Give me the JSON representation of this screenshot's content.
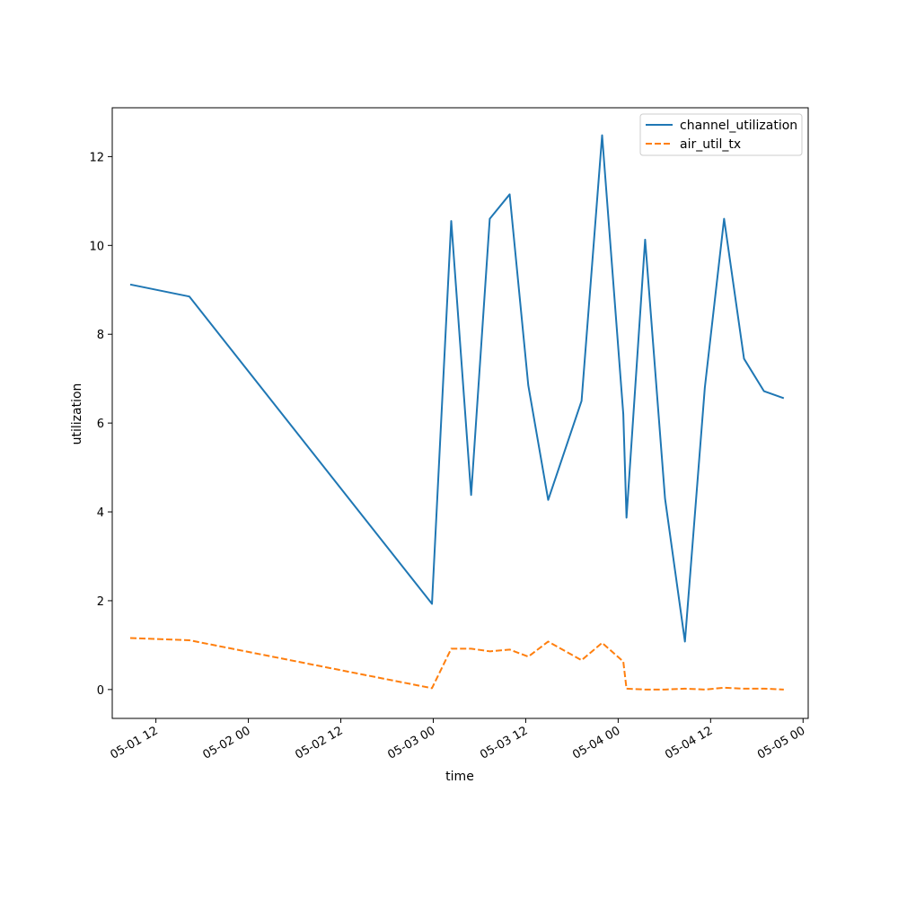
{
  "chart_data": {
    "type": "line",
    "title": "",
    "xlabel": "time",
    "ylabel": "utilization",
    "x_ticks": [
      "05-01 12",
      "05-02 00",
      "05-02 12",
      "05-03 00",
      "05-03 12",
      "05-04 00",
      "05-04 12",
      "05-05 00"
    ],
    "y_ticks": [
      "0",
      "2",
      "4",
      "6",
      "8",
      "10",
      "12"
    ],
    "xlim": [
      "2024-05-01T06:20",
      "2024-05-05T00:40"
    ],
    "ylim": [
      -0.65,
      13.1
    ],
    "grid": false,
    "legend_position": "top-right",
    "x": [
      "2024-05-01T08:40",
      "2024-05-01T16:20",
      "2024-05-02T23:50",
      "2024-05-03T02:20",
      "2024-05-03T04:55",
      "2024-05-03T07:20",
      "2024-05-03T09:55",
      "2024-05-03T12:20",
      "2024-05-03T14:55",
      "2024-05-03T19:15",
      "2024-05-03T21:55",
      "2024-05-04T00:40",
      "2024-05-04T01:05",
      "2024-05-04T03:30",
      "2024-05-04T06:05",
      "2024-05-04T08:40",
      "2024-05-04T11:15",
      "2024-05-04T13:45",
      "2024-05-04T16:20",
      "2024-05-04T18:55",
      "2024-05-04T21:30"
    ],
    "series": [
      {
        "name": "channel_utilization",
        "color": "#1f77b4",
        "style": "solid",
        "values": [
          9.12,
          8.85,
          1.93,
          10.55,
          4.38,
          10.6,
          11.15,
          6.85,
          4.27,
          6.5,
          12.48,
          6.2,
          3.87,
          10.13,
          4.3,
          1.08,
          6.8,
          10.6,
          7.45,
          6.72,
          6.56
        ]
      },
      {
        "name": "air_util_tx",
        "color": "#ff7f0e",
        "style": "dashed",
        "values": [
          1.16,
          1.11,
          0.03,
          0.92,
          0.92,
          0.86,
          0.9,
          0.74,
          1.08,
          0.66,
          1.05,
          0.63,
          0.02,
          0.0,
          0.0,
          0.02,
          0.0,
          0.04,
          0.02,
          0.02,
          0.0
        ]
      }
    ]
  }
}
